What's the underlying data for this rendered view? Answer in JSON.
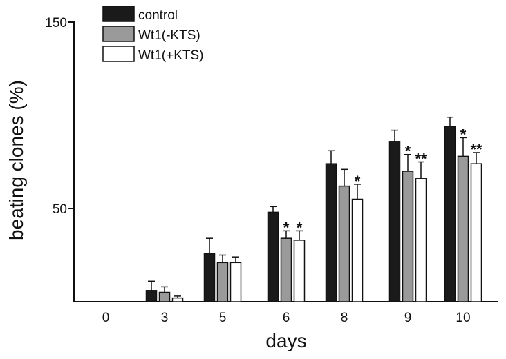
{
  "chart_data": {
    "type": "bar",
    "xlabel": "days",
    "ylabel": "beating clones (%)",
    "yticks": [
      50,
      150
    ],
    "ylim": [
      0,
      150
    ],
    "categories": [
      "0",
      "3",
      "5",
      "6",
      "8",
      "9",
      "10"
    ],
    "legend_position": "top-left",
    "grid": false,
    "series": [
      {
        "name": "control",
        "color": "#1a1a1a",
        "values": [
          0,
          6,
          26,
          48,
          74,
          86,
          94
        ],
        "errors": [
          0,
          5,
          8,
          3,
          7,
          6,
          5
        ]
      },
      {
        "name": "Wt1(-KTS)",
        "color": "#9a9a9a",
        "values": [
          0,
          5,
          21,
          34,
          62,
          70,
          78
        ],
        "errors": [
          0,
          3,
          4,
          4,
          9,
          9,
          10
        ]
      },
      {
        "name": "Wt1(+KTS)",
        "color": "#ffffff",
        "values": [
          0,
          2,
          21,
          33,
          55,
          66,
          74
        ],
        "errors": [
          0,
          1,
          3,
          5,
          8,
          9,
          6
        ]
      }
    ],
    "annotations": [
      {
        "category": "6",
        "series": "Wt1(-KTS)",
        "text": "*"
      },
      {
        "category": "6",
        "series": "Wt1(+KTS)",
        "text": "*"
      },
      {
        "category": "8",
        "series": "Wt1(+KTS)",
        "text": "*"
      },
      {
        "category": "9",
        "series": "Wt1(-KTS)",
        "text": "*"
      },
      {
        "category": "9",
        "series": "Wt1(+KTS)",
        "text": "**"
      },
      {
        "category": "10",
        "series": "Wt1(-KTS)",
        "text": "*"
      },
      {
        "category": "10",
        "series": "Wt1(+KTS)",
        "text": "**"
      }
    ]
  }
}
